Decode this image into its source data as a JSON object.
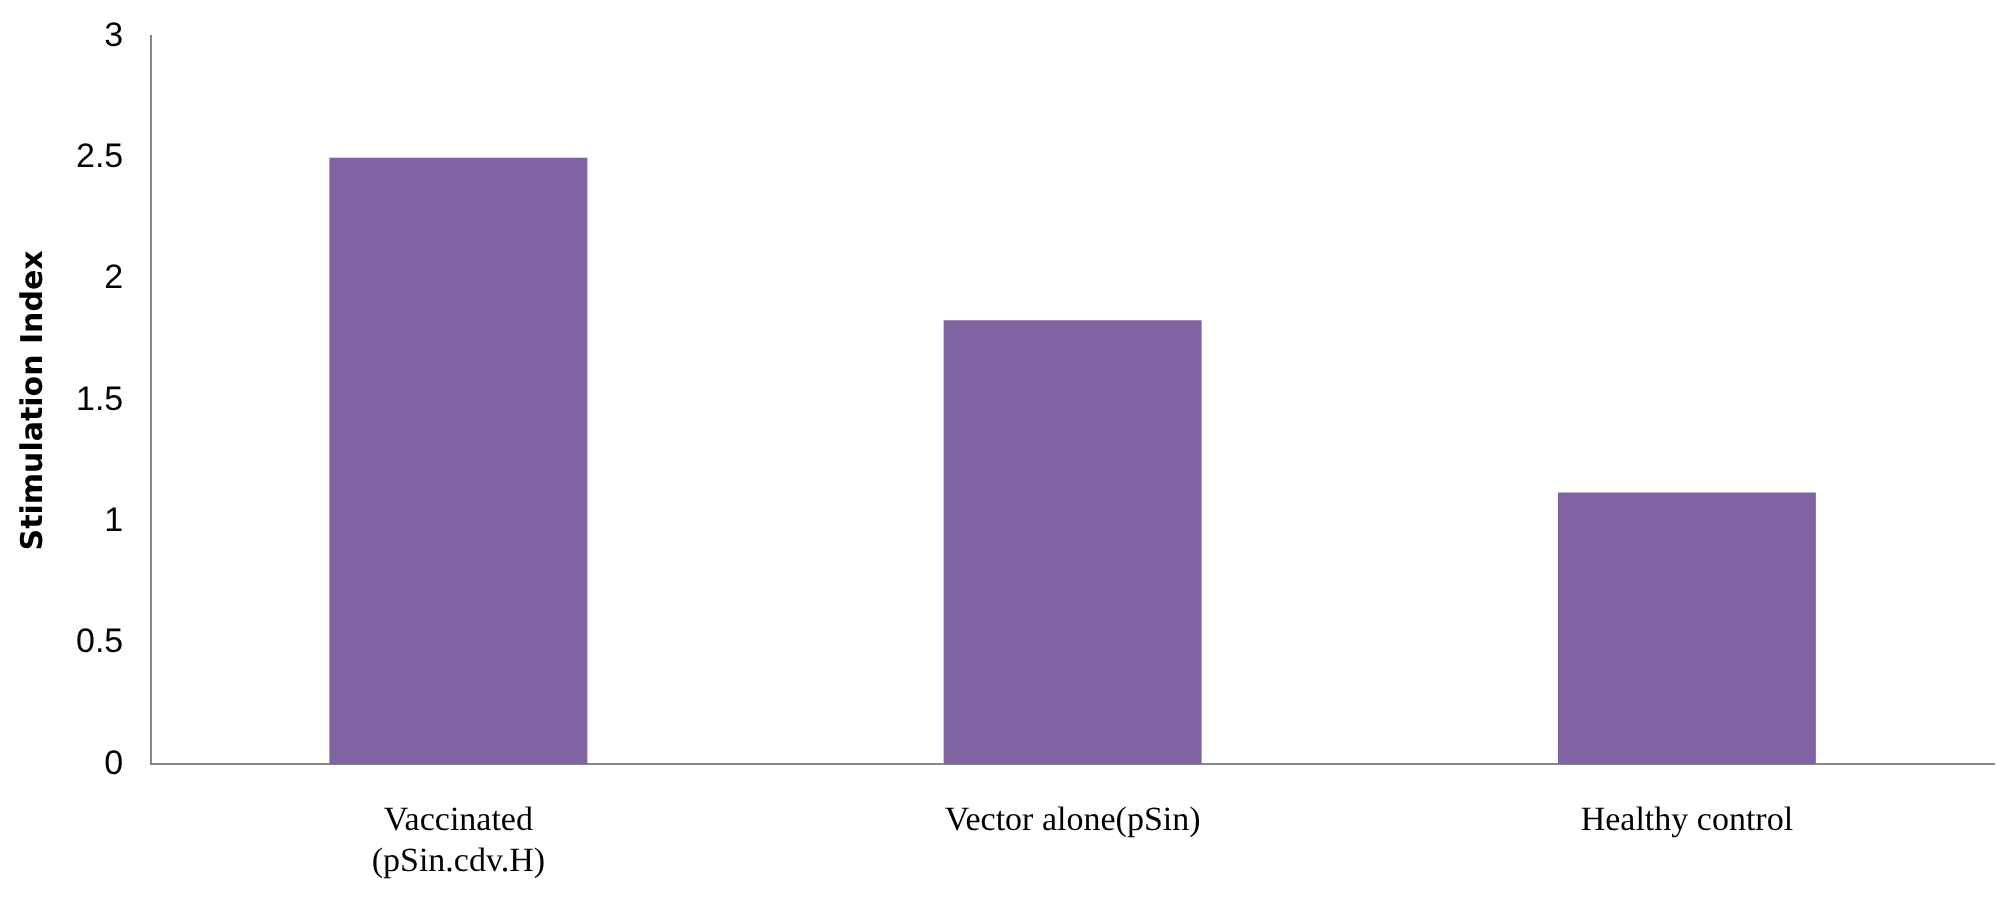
{
  "chart_data": {
    "type": "bar",
    "ylabel": "Stimulation Index",
    "categories": [
      "Vaccinated (pSin.cdv.H)",
      "Vector alone(pSin)",
      "Healthy control"
    ],
    "values": [
      2.5,
      1.83,
      1.12
    ],
    "color": "#8064a2",
    "ylim": [
      0,
      3
    ],
    "yticks": [
      0,
      0.5,
      1,
      1.5,
      2,
      2.5,
      3
    ],
    "grid": false,
    "legend": false
  }
}
